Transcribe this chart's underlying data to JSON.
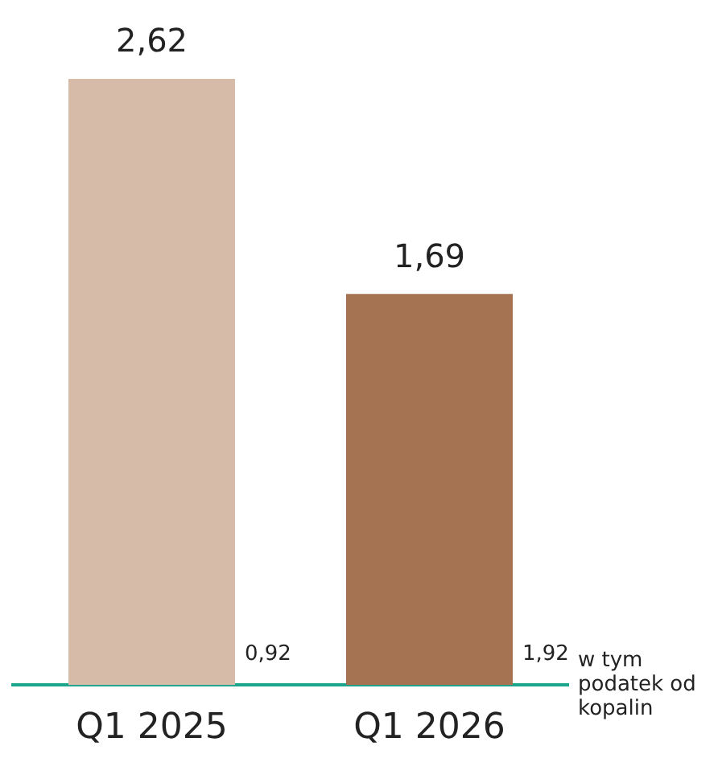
{
  "chart_data": {
    "type": "bar",
    "categories": [
      "Q1 2025",
      "Q1 2026"
    ],
    "values": [
      2.62,
      1.69
    ],
    "colors": [
      "#d6bba8",
      "#a57352"
    ],
    "data_labels": true,
    "value_labels": [
      "2,62",
      "1,69"
    ],
    "annotations": [
      "0,92",
      "1,92",
      "w tym podatek od kopalin"
    ]
  }
}
